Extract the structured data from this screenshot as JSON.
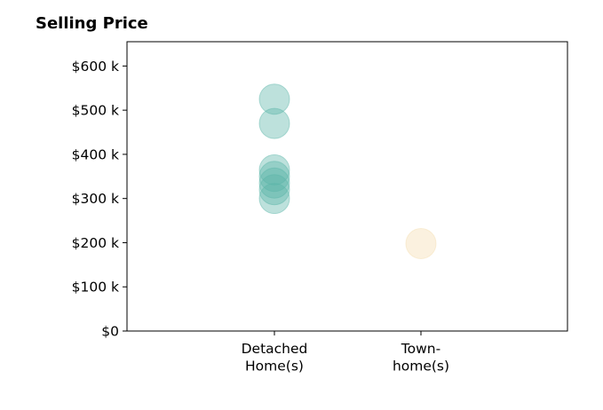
{
  "chart_data": {
    "type": "scatter",
    "title": "Selling Price",
    "xlabel": "",
    "ylabel": "",
    "categories": [
      [
        "Detached",
        "Home(s)"
      ],
      [
        "Town-",
        "home(s)"
      ]
    ],
    "y_ticks": [
      "$0",
      "$100 k",
      "$200 k",
      "$300 k",
      "$400 k",
      "$500 k",
      "$600 k"
    ],
    "y_tick_values": [
      0,
      100,
      200,
      300,
      400,
      500,
      600
    ],
    "ylim": [
      0,
      655
    ],
    "grid": false,
    "series": [
      {
        "category_index": 0,
        "color": "#5bb5a8",
        "values": [
          525,
          470,
          365,
          350,
          335,
          320,
          300
        ]
      },
      {
        "category_index": 1,
        "color": "#f5ddb0",
        "values": [
          198
        ]
      }
    ]
  }
}
